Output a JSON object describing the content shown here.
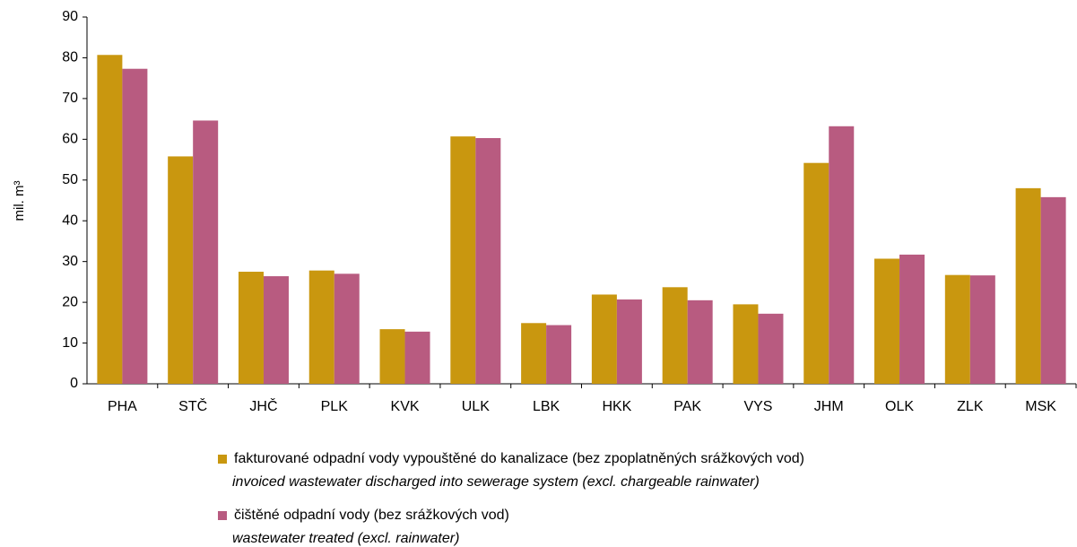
{
  "chart_data": {
    "type": "bar",
    "y_label": "mil. m³",
    "categories": [
      "PHA",
      "STČ",
      "JHČ",
      "PLK",
      "KVK",
      "ULK",
      "LBK",
      "HKK",
      "PAK",
      "VYS",
      "JHM",
      "OLK",
      "ZLK",
      "MSK"
    ],
    "series": [
      {
        "name": "fakturované odpadní vody vypouštěné do kanalizace (bez zpoplatněných srážkových vod)",
        "name_en": "invoiced wastewater discharged into sewerage system (excl. chargeable rainwater)",
        "color": "#c9970f",
        "values": [
          80.7,
          55.8,
          27.5,
          27.8,
          13.4,
          60.7,
          14.9,
          21.9,
          23.7,
          19.5,
          54.2,
          30.7,
          26.7,
          48.0
        ]
      },
      {
        "name": "čištěné odpadní vody (bez srážkových vod)",
        "name_en": "wastewater treated (excl. rainwater)",
        "color": "#b85b80",
        "values": [
          77.3,
          64.6,
          26.4,
          27.0,
          12.8,
          60.3,
          14.4,
          20.7,
          20.5,
          17.2,
          63.2,
          31.7,
          26.6,
          45.8
        ]
      }
    ],
    "ylim": [
      0,
      90
    ],
    "yticks": [
      0,
      10,
      20,
      30,
      40,
      50,
      60,
      70,
      80,
      90
    ],
    "grid": false
  }
}
